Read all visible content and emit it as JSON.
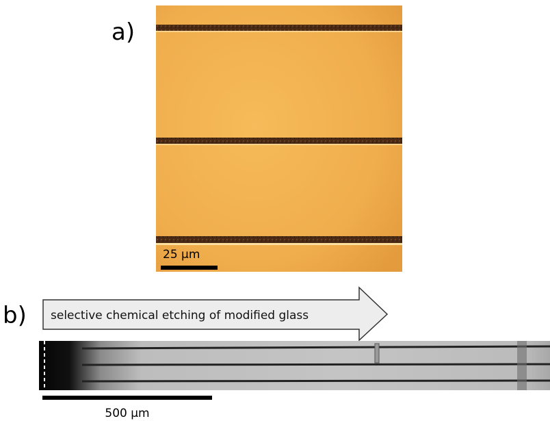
{
  "panels": [
    {
      "label": "a)",
      "scale_bar": "25 µm"
    },
    {
      "label": "b)",
      "arrow_text": "selective chemical etching of modified glass",
      "scale_bar": "500 µm"
    }
  ]
}
